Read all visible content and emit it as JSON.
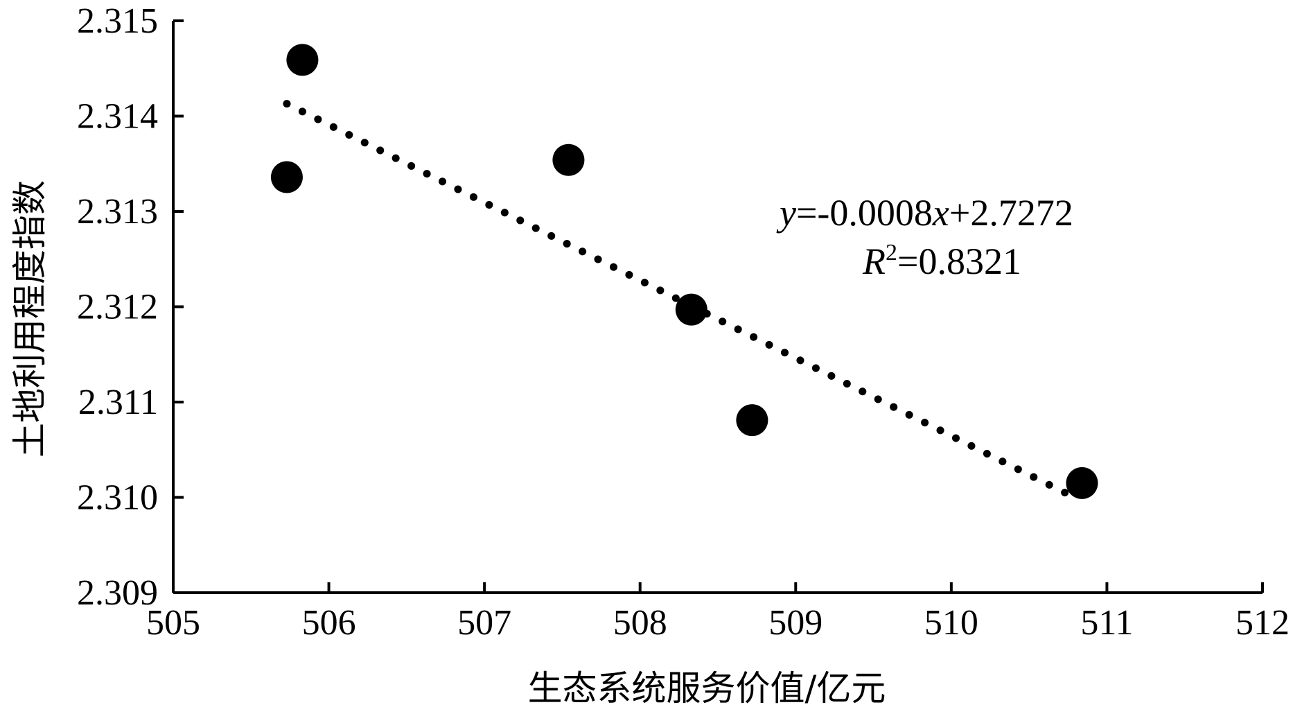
{
  "chart_data": {
    "type": "scatter",
    "xlabel": "生态系统服务价值/亿元",
    "ylabel": "土地利用程度指数",
    "xlim": [
      505,
      512
    ],
    "ylim": [
      2.309,
      2.315
    ],
    "x_ticks": [
      "505",
      "506",
      "507",
      "508",
      "509",
      "510",
      "511",
      "512"
    ],
    "y_ticks": [
      "2.309",
      "2.310",
      "2.311",
      "2.312",
      "2.313",
      "2.314",
      "2.315"
    ],
    "points": [
      {
        "x": 505.73,
        "y": 2.31336
      },
      {
        "x": 505.83,
        "y": 2.31459
      },
      {
        "x": 507.54,
        "y": 2.31354
      },
      {
        "x": 508.33,
        "y": 2.31197
      },
      {
        "x": 508.72,
        "y": 2.31081
      },
      {
        "x": 510.84,
        "y": 2.31015
      }
    ],
    "trendline": {
      "type": "linear",
      "style": "dotted",
      "from": {
        "x": 505.73,
        "y": 2.31413
      },
      "to": {
        "x": 510.73,
        "y": 2.31005
      }
    },
    "annotation": {
      "equation": {
        "y": "y",
        "eq": "=-0.0008",
        "x": "x",
        "rest": "+2.7272"
      },
      "r2": {
        "r": "R",
        "sup": "2",
        "rest": "=0.8321"
      }
    },
    "grid": false,
    "legend": "none"
  }
}
